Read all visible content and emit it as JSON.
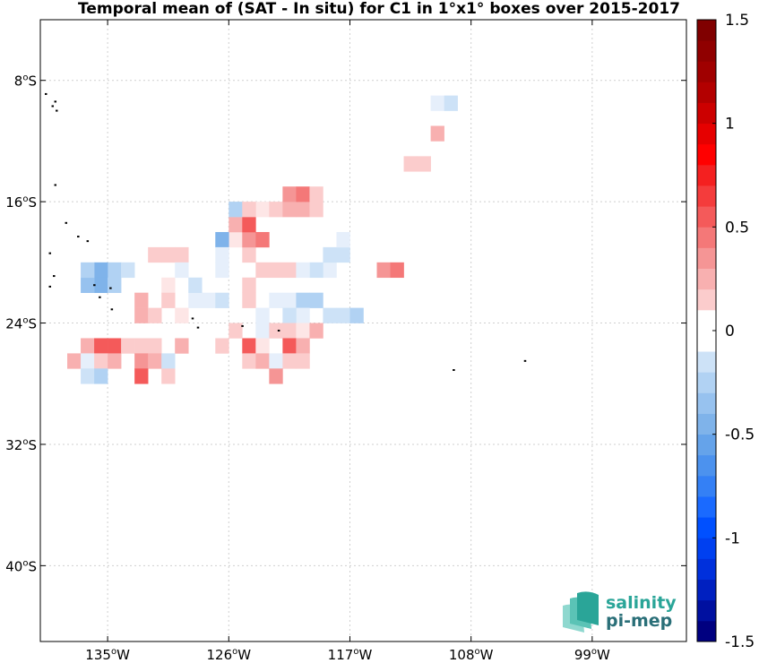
{
  "chart_data": {
    "type": "heatmap",
    "title": "Temporal mean of (SAT - In situ) for C1 in 1°x1° boxes over 2015-2017",
    "xlabel": "",
    "ylabel": "",
    "xlim": [
      -140,
      -92
    ],
    "ylim": [
      -45,
      -4
    ],
    "x_ticks": [
      {
        "value": -135,
        "deg": "135",
        "hem": "W"
      },
      {
        "value": -126,
        "deg": "126",
        "hem": "W"
      },
      {
        "value": -117,
        "deg": "117",
        "hem": "W"
      },
      {
        "value": -108,
        "deg": "108",
        "hem": "W"
      },
      {
        "value": -99,
        "deg": "99",
        "hem": "W"
      }
    ],
    "y_ticks": [
      {
        "value": -8,
        "deg": "8",
        "hem": "S"
      },
      {
        "value": -16,
        "deg": "16",
        "hem": "S"
      },
      {
        "value": -24,
        "deg": "24",
        "hem": "S"
      },
      {
        "value": -32,
        "deg": "32",
        "hem": "S"
      },
      {
        "value": -40,
        "deg": "40",
        "hem": "S"
      }
    ],
    "grid": true,
    "colorbar": {
      "min": -1.5,
      "max": 1.5,
      "step": 0.1,
      "ticks": [
        "1.5",
        "1",
        "0.5",
        "0",
        "-0.5",
        "-1",
        "-1.5"
      ],
      "low_color": "#000080",
      "zero_color": "#ffffff",
      "high_color": "#800000"
    },
    "cells_note": "each cell: [lon_center, lat_center, value]",
    "cells": [
      [
        -118.5,
        -20.5,
        -0.05
      ],
      [
        -119.5,
        -20.5,
        -0.1
      ],
      [
        -131.5,
        -19.5,
        0.1
      ],
      [
        -130.5,
        -19.5,
        0.1
      ],
      [
        -129.5,
        -19.5,
        0.1
      ],
      [
        -134.5,
        -20.5,
        -0.25
      ],
      [
        -135.5,
        -20.5,
        -0.4
      ],
      [
        -135.5,
        -21.5,
        -0.4
      ],
      [
        -136.5,
        -21.5,
        -0.35
      ],
      [
        -136.5,
        -20.5,
        -0.3
      ],
      [
        -133.5,
        -20.5,
        -0.15
      ],
      [
        -134.5,
        -21.5,
        -0.3
      ],
      [
        -125.5,
        -18.5,
        0.05
      ],
      [
        -124.5,
        -19.5,
        0.1
      ],
      [
        -126.5,
        -18.5,
        -0.45
      ],
      [
        -125.5,
        -17.5,
        0.3
      ],
      [
        -124.5,
        -18.5,
        0.35
      ],
      [
        -123.5,
        -18.5,
        0.45
      ],
      [
        -124.5,
        -17.5,
        0.55
      ],
      [
        -123.5,
        -16.5,
        0.05
      ],
      [
        -125.5,
        -16.5,
        -0.3
      ],
      [
        -124.5,
        -16.5,
        0.1
      ],
      [
        -122.5,
        -16.5,
        0.1
      ],
      [
        -121.5,
        -16.5,
        0.3
      ],
      [
        -120.5,
        -16.5,
        0.25
      ],
      [
        -119.5,
        -16.5,
        0.1
      ],
      [
        -121.5,
        -15.5,
        0.35
      ],
      [
        -120.5,
        -15.5,
        0.4
      ],
      [
        -119.5,
        -15.5,
        0.1
      ],
      [
        -123.5,
        -20.5,
        0.1
      ],
      [
        -122.5,
        -20.5,
        0.1
      ],
      [
        -121.5,
        -20.5,
        0.1
      ],
      [
        -120.5,
        -20.5,
        -0.05
      ],
      [
        -114.5,
        -20.5,
        0.35
      ],
      [
        -113.5,
        -20.5,
        0.4
      ],
      [
        -117.5,
        -19.5,
        -0.1
      ],
      [
        -118.5,
        -19.5,
        -0.1
      ],
      [
        -117.5,
        -18.5,
        -0.05
      ],
      [
        -111.5,
        -13.5,
        0.1
      ],
      [
        -112.5,
        -13.5,
        0.1
      ],
      [
        -110.5,
        -11.5,
        0.2
      ],
      [
        -110.5,
        -9.5,
        -0.05
      ],
      [
        -109.5,
        -9.5,
        -0.15
      ],
      [
        -127.5,
        -22.5,
        -0.05
      ],
      [
        -126.5,
        -22.5,
        -0.1
      ],
      [
        -128.5,
        -22.5,
        -0.05
      ],
      [
        -128.5,
        -21.5,
        -0.15
      ],
      [
        -130.5,
        -21.5,
        0.05
      ],
      [
        -129.5,
        -20.5,
        -0.05
      ],
      [
        -126.5,
        -19.5,
        -0.05
      ],
      [
        -126.5,
        -20.5,
        -0.05
      ],
      [
        -124.5,
        -21.5,
        0.1
      ],
      [
        -124.5,
        -22.5,
        0.1
      ],
      [
        -122.5,
        -22.5,
        -0.05
      ],
      [
        -121.5,
        -22.5,
        -0.05
      ],
      [
        -120.5,
        -22.5,
        -0.2
      ],
      [
        -119.5,
        -22.5,
        -0.3
      ],
      [
        -120.5,
        -23.5,
        -0.05
      ],
      [
        -121.5,
        -23.5,
        -0.1
      ],
      [
        -118.5,
        -23.5,
        -0.1
      ],
      [
        -117.5,
        -23.5,
        -0.1
      ],
      [
        -116.5,
        -23.5,
        -0.2
      ],
      [
        -132.5,
        -22.5,
        0.2
      ],
      [
        -132.5,
        -23.5,
        0.2
      ],
      [
        -131.5,
        -23.5,
        0.15
      ],
      [
        -130.5,
        -22.5,
        0.15
      ],
      [
        -129.5,
        -23.5,
        0.05
      ],
      [
        -123.5,
        -23.5,
        -0.05
      ],
      [
        -123.5,
        -24.5,
        -0.05
      ],
      [
        -122.5,
        -24.5,
        0.1
      ],
      [
        -121.5,
        -24.5,
        0.1
      ],
      [
        -120.5,
        -24.5,
        0.05
      ],
      [
        -119.5,
        -24.5,
        0.2
      ],
      [
        -136.5,
        -25.5,
        0.25
      ],
      [
        -135.5,
        -25.5,
        0.5
      ],
      [
        -134.5,
        -25.5,
        0.6
      ],
      [
        -133.5,
        -25.5,
        0.1
      ],
      [
        -132.5,
        -25.5,
        0.1
      ],
      [
        -131.5,
        -25.5,
        0.1
      ],
      [
        -129.5,
        -25.5,
        0.25
      ],
      [
        -126.5,
        -25.5,
        0.15
      ],
      [
        -124.5,
        -25.5,
        0.55
      ],
      [
        -123.5,
        -25.5,
        0.05
      ],
      [
        -121.5,
        -25.5,
        0.6
      ],
      [
        -120.5,
        -25.5,
        0.3
      ],
      [
        -137.5,
        -26.5,
        0.2
      ],
      [
        -136.5,
        -26.5,
        -0.05
      ],
      [
        -135.5,
        -26.5,
        0.15
      ],
      [
        -134.5,
        -26.5,
        0.25
      ],
      [
        -132.5,
        -26.5,
        0.35
      ],
      [
        -131.5,
        -26.5,
        0.25
      ],
      [
        -130.5,
        -26.5,
        -0.1
      ],
      [
        -124.5,
        -26.5,
        0.1
      ],
      [
        -123.5,
        -26.5,
        0.2
      ],
      [
        -122.5,
        -26.5,
        -0.05
      ],
      [
        -121.5,
        -26.5,
        0.15
      ],
      [
        -120.5,
        -26.5,
        0.15
      ],
      [
        -136.5,
        -27.5,
        -0.1
      ],
      [
        -135.5,
        -27.5,
        -0.2
      ],
      [
        -132.5,
        -27.5,
        0.55
      ],
      [
        -130.5,
        -27.5,
        0.15
      ],
      [
        -122.5,
        -27.5,
        0.35
      ],
      [
        -125.5,
        -24.5,
        0.1
      ]
    ],
    "islands_note": "small black land marks: [lon, lat]",
    "islands": [
      [
        -139.6,
        -8.9
      ],
      [
        -139.1,
        -9.7
      ],
      [
        -138.9,
        -9.4
      ],
      [
        -138.8,
        -10.0
      ],
      [
        -138.9,
        -14.9
      ],
      [
        -138.1,
        -17.4
      ],
      [
        -137.2,
        -18.3
      ],
      [
        -136.5,
        -18.6
      ],
      [
        -139.0,
        -20.9
      ],
      [
        -136.0,
        -21.5
      ],
      [
        -135.6,
        -22.3
      ],
      [
        -134.8,
        -21.7
      ],
      [
        -134.7,
        -23.1
      ],
      [
        -128.3,
        -24.3
      ],
      [
        -125.0,
        -24.2
      ],
      [
        -122.3,
        -24.5
      ],
      [
        -128.7,
        -23.7
      ],
      [
        -139.3,
        -19.4
      ],
      [
        -139.3,
        -21.6
      ],
      [
        -109.3,
        -27.1
      ],
      [
        -104.0,
        -26.5
      ]
    ],
    "logo": {
      "line1": "salinity",
      "line2": "pi-mep"
    }
  }
}
